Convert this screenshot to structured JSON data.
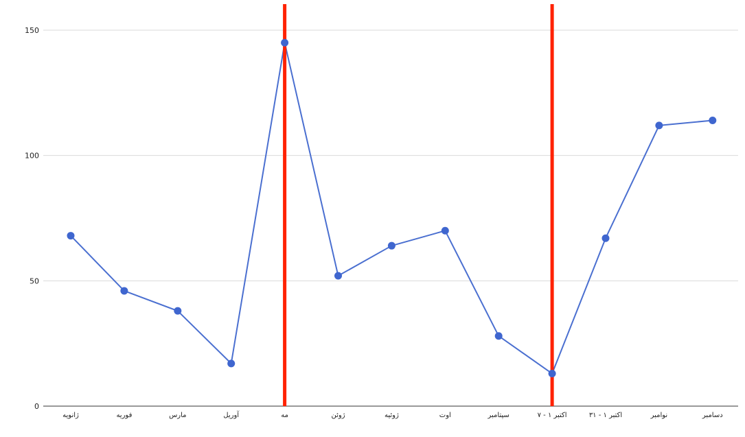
{
  "chart_data": {
    "type": "line",
    "title": "",
    "xlabel": "",
    "ylabel": "",
    "categories": [
      "ژانویه",
      "فوریه",
      "مارس",
      "آوریل",
      "مه",
      "ژوئن",
      "ژوئیه",
      "اوت",
      "سپتامبر",
      "اکتبر ۱ - ۷",
      "اکتبر ۱ - ۳۱",
      "نوامبر",
      "دسامبر"
    ],
    "series": [
      {
        "values": [
          68,
          46,
          38,
          17,
          145,
          52,
          64,
          70,
          28,
          13,
          67,
          112,
          114
        ]
      }
    ],
    "ylim": [
      0,
      150
    ],
    "yticks": [
      0,
      50,
      100,
      150
    ],
    "grid": true,
    "legend": "none",
    "markers": [
      {
        "category_index": 4
      },
      {
        "category_index": 9
      }
    ],
    "colors": {
      "line": "#4a6fd0",
      "point": "#3f66cf",
      "marker": "#ff2200",
      "grid": "#d9d9d9",
      "axis": "#333333"
    }
  }
}
